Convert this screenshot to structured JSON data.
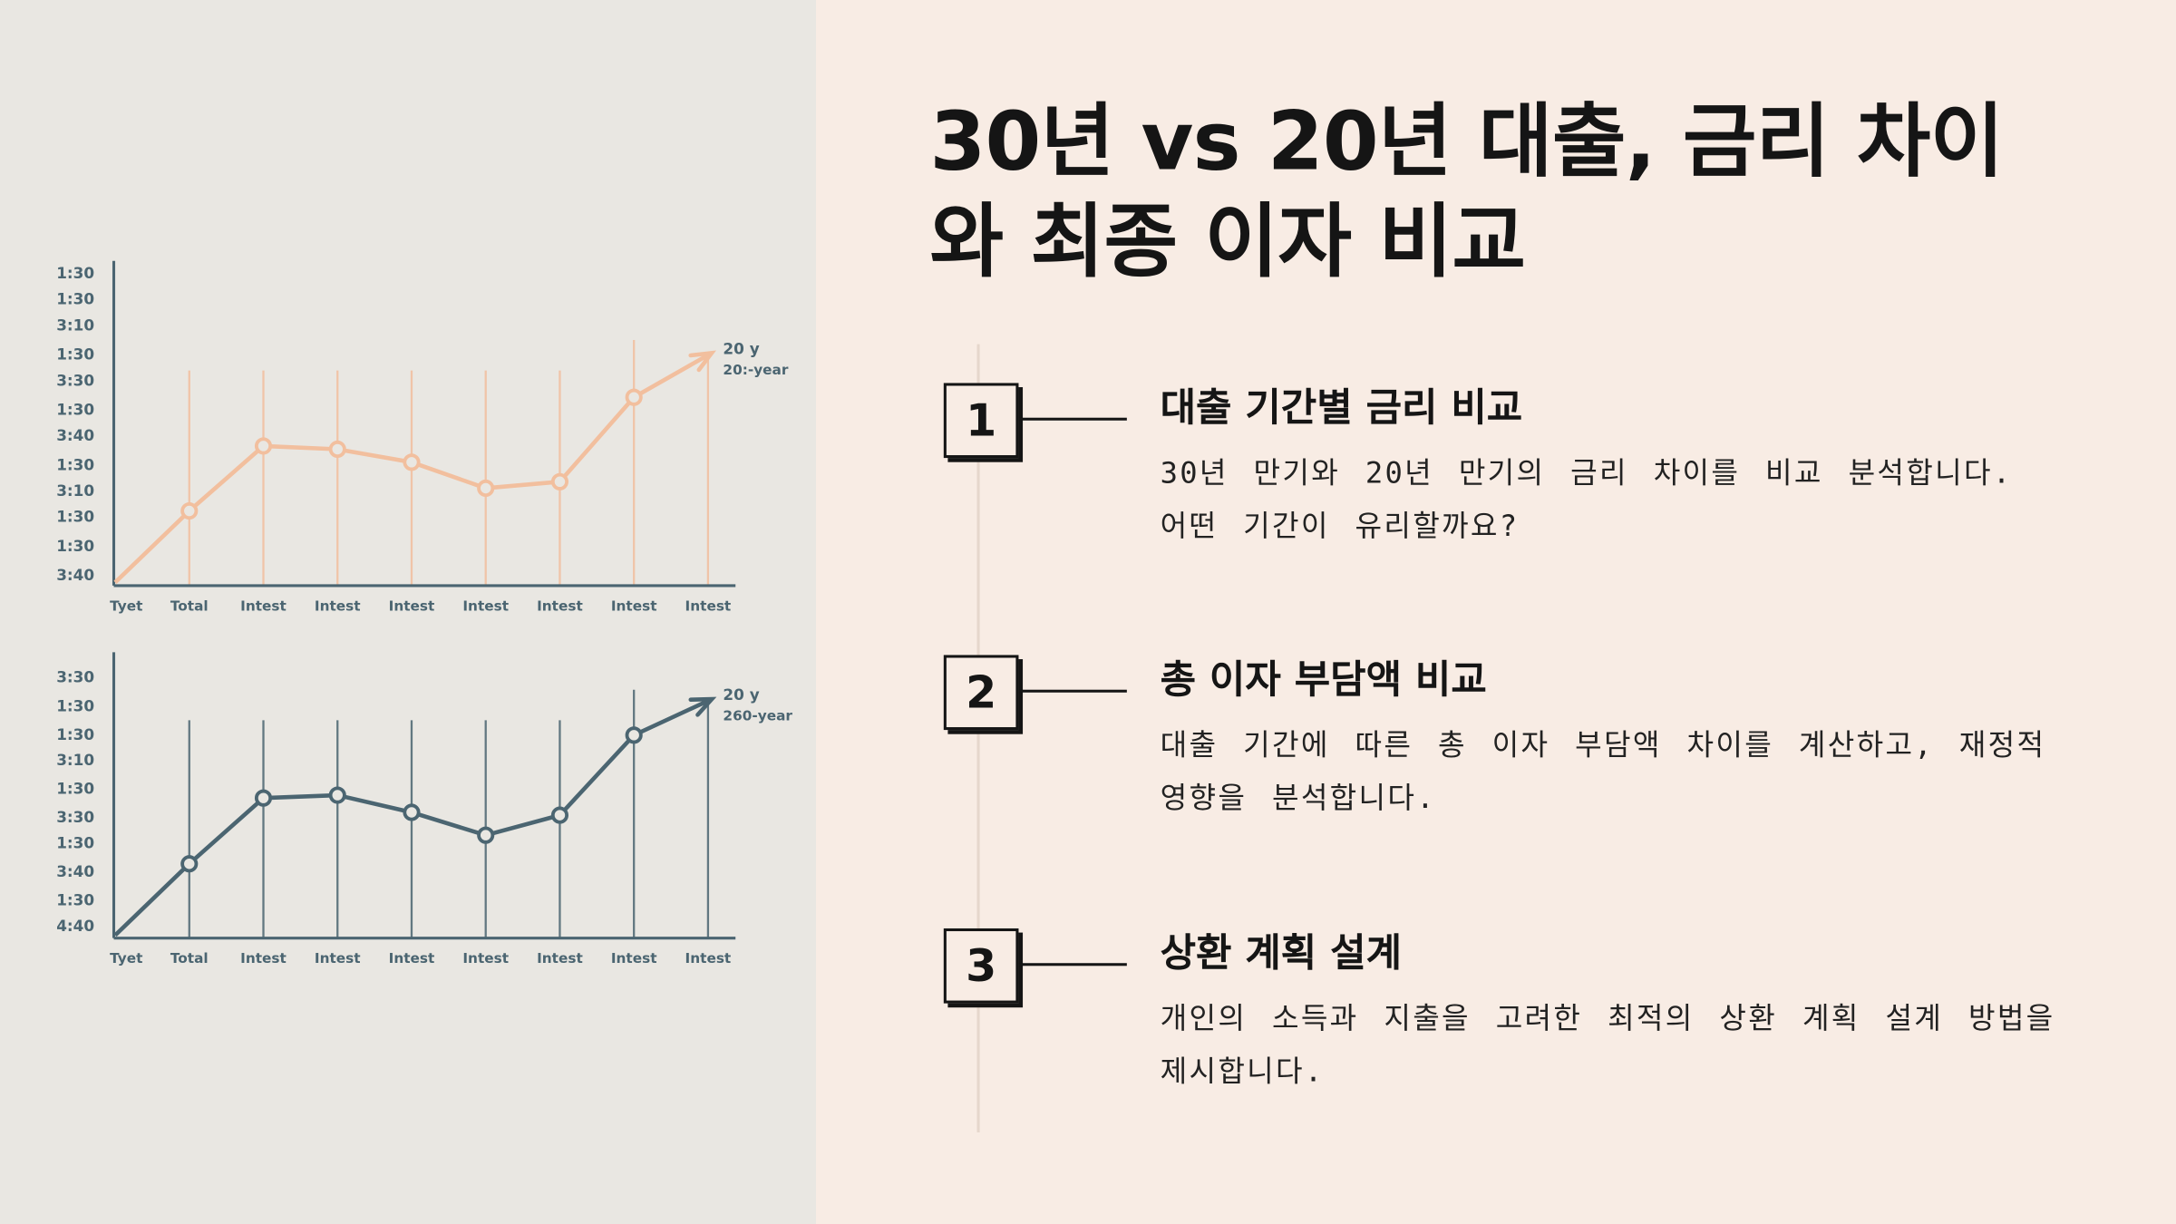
{
  "chart_data": [
    {
      "type": "line",
      "color": "#f2bf9e",
      "categories": [
        "Tyet",
        "Total",
        "Intest",
        "Intest",
        "Intest",
        "Intest",
        "Intest",
        "Intest",
        "Intest"
      ],
      "values": [
        1,
        23,
        43,
        42,
        38,
        30,
        32,
        58,
        71
      ],
      "ylim": [
        0,
        100
      ],
      "yticks": [
        {
          "value": 96,
          "label": "1:30"
        },
        {
          "value": 88,
          "label": "1:30"
        },
        {
          "value": 80,
          "label": "3:10"
        },
        {
          "value": 71,
          "label": "1:30"
        },
        {
          "value": 63,
          "label": "3:30"
        },
        {
          "value": 54,
          "label": "1:30"
        },
        {
          "value": 46,
          "label": "3:40"
        },
        {
          "value": 37,
          "label": "1:30"
        },
        {
          "value": 29,
          "label": "3:10"
        },
        {
          "value": 21,
          "label": "1:30"
        },
        {
          "value": 12,
          "label": "1:30"
        },
        {
          "value": 3,
          "label": "3:40"
        }
      ],
      "annotations": [
        "20 y",
        "20:-year"
      ]
    },
    {
      "type": "line",
      "color": "#4b6571",
      "categories": [
        "Tyet",
        "Total",
        "Intest",
        "Intest",
        "Intest",
        "Intest",
        "Intest",
        "Intest",
        "Intest"
      ],
      "values": [
        1,
        26,
        49,
        50,
        44,
        36,
        43,
        71,
        83
      ],
      "ylim": [
        0,
        100
      ],
      "yticks": [
        {
          "value": 91,
          "label": "3:30"
        },
        {
          "value": 81,
          "label": "1:30"
        },
        {
          "value": 71,
          "label": "1:30"
        },
        {
          "value": 62,
          "label": "3:10"
        },
        {
          "value": 52,
          "label": "1:30"
        },
        {
          "value": 42,
          "label": "3:30"
        },
        {
          "value": 33,
          "label": "1:30"
        },
        {
          "value": 23,
          "label": "3:40"
        },
        {
          "value": 13,
          "label": "1:30"
        },
        {
          "value": 4,
          "label": "4:40"
        }
      ],
      "annotations": [
        "20 y",
        "260-year"
      ]
    }
  ],
  "slide": {
    "title": "30년 vs 20년 대출, 금리 차이와 최종 이자 비교",
    "steps": [
      {
        "number": "1",
        "heading": "대출 기간별 금리 비교",
        "body": "30년 만기와 20년 만기의 금리 차이를 비교 분석합니다. 어떤 기간이 유리할까요?"
      },
      {
        "number": "2",
        "heading": "총 이자 부담액 비교",
        "body": "대출 기간에 따른 총 이자 부담액 차이를 계산하고, 재정적 영향을 분석합니다."
      },
      {
        "number": "3",
        "heading": "상환 계획 설계",
        "body": "개인의 소득과 지출을 고려한 최적의 상환 계획 설계 방법을 제시합니다."
      }
    ]
  }
}
